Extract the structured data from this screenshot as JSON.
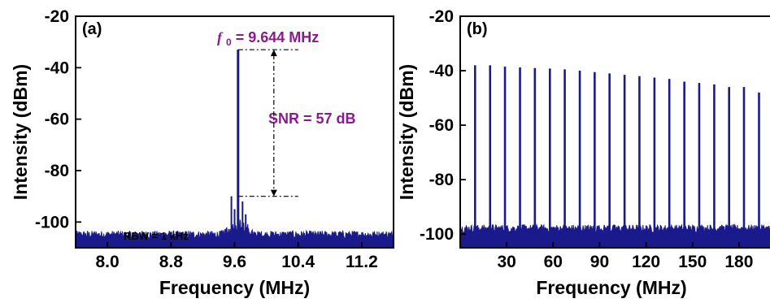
{
  "chart_data": [
    {
      "type": "line",
      "panel_label": "(a)",
      "xlabel": "Frequency (MHz)",
      "ylabel": "Intensity (dBm)",
      "xlim": [
        7.6,
        11.6
      ],
      "ylim": [
        -110,
        -20
      ],
      "xticks": [
        8.0,
        8.8,
        9.6,
        10.4,
        11.2
      ],
      "xtick_labels": [
        "8.0",
        "8.8",
        "9.6",
        "10.4",
        "11.2"
      ],
      "yticks": [
        -100,
        -80,
        -60,
        -40,
        -20
      ],
      "ytick_labels": [
        "-100",
        "-80",
        "-60",
        "-40",
        "-20"
      ],
      "color": "#1a1a8c",
      "noise_floor": -105,
      "peak": {
        "x": 9.644,
        "y": -33
      },
      "peak_label_symbol": "f",
      "peak_label_subscript": "0",
      "peak_label_value": " = 9.644 MHz",
      "snr_label": "SNR = 57 dB",
      "snr_top": -33,
      "snr_bottom": -90,
      "rbw_label": "RBW = 1 kHz"
    },
    {
      "type": "line",
      "panel_label": "(b)",
      "xlabel": "Frequency (MHz)",
      "ylabel": "Intensity (dBm)",
      "xlim": [
        0,
        200
      ],
      "ylim": [
        -105,
        -20
      ],
      "xticks": [
        30,
        60,
        90,
        120,
        150,
        180
      ],
      "xtick_labels": [
        "30",
        "60",
        "90",
        "120",
        "150",
        "180"
      ],
      "yticks": [
        -100,
        -80,
        -60,
        -40,
        -20
      ],
      "ytick_labels": [
        "-100",
        "-80",
        "-60",
        "-40",
        "-20"
      ],
      "color": "#1a1a8c",
      "noise_floor": -98,
      "peaks_x": [
        9.6,
        19.3,
        28.9,
        38.6,
        48.2,
        57.9,
        67.5,
        77.2,
        86.8,
        96.4,
        106.1,
        115.7,
        125.4,
        135.0,
        144.7,
        154.3,
        164.0,
        173.6,
        183.2,
        192.9
      ],
      "peaks_y": [
        -38,
        -38,
        -38.5,
        -38.8,
        -39,
        -39.2,
        -39.5,
        -40,
        -40.5,
        -41,
        -41.5,
        -42,
        -42.5,
        -43,
        -44,
        -44.5,
        -45,
        -46,
        -46,
        -48
      ]
    }
  ]
}
